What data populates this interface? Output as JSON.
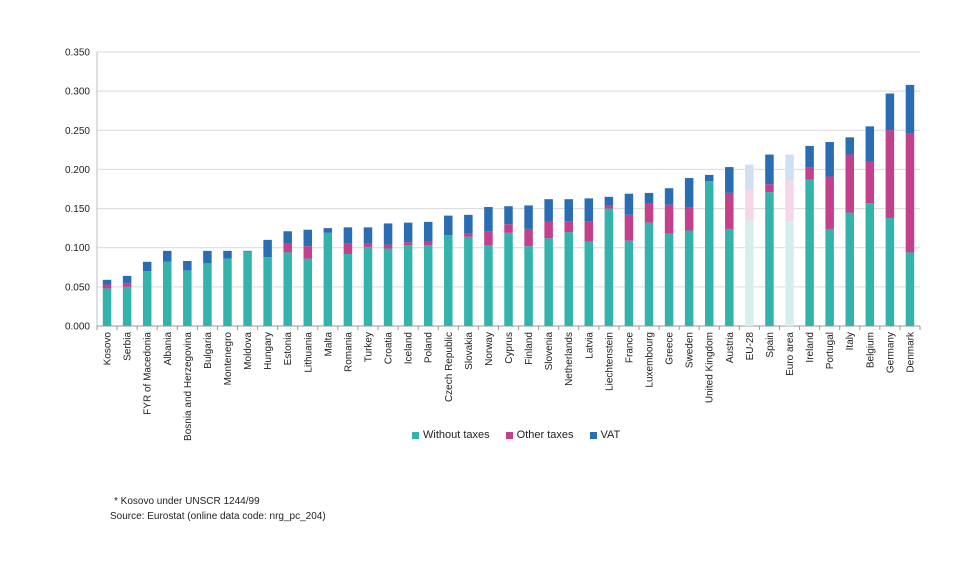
{
  "chart_data": {
    "type": "bar",
    "stacked": true,
    "ylim": [
      0,
      0.35
    ],
    "yticks": [
      "0.000",
      "0.050",
      "0.100",
      "0.150",
      "0.200",
      "0.250",
      "0.300",
      "0.350"
    ],
    "grid": true,
    "categories": [
      "Kosovo",
      "Serbia",
      "FYR of Macedonia",
      "Albania",
      "Bosnia and Herzegovina",
      "Bulgaria",
      "Montenegro",
      "Moldova",
      "Hungary",
      "Estonia",
      "Lithuania",
      "Malta",
      "Romania",
      "Turkey",
      "Croatia",
      "Iceland",
      "Poland",
      "Czech Republic",
      "Slovakia",
      "Norway",
      "Cyprus",
      "Finland",
      "Slovenia",
      "Netherlands",
      "Latvia",
      "Liechtenstein",
      "France",
      "Luxembourg",
      "Greece",
      "Sweden",
      "United Kingdom",
      "Austria",
      "EU-28",
      "Spain",
      "Euro area",
      "Ireland",
      "Portugal",
      "Italy",
      "Belgium",
      "Germany",
      "Denmark"
    ],
    "highlighted": [
      "EU-28",
      "Euro area"
    ],
    "series": [
      {
        "name": "Without taxes",
        "color": "#34b3ac",
        "light_color": "#d4efee",
        "values": [
          0.048,
          0.05,
          0.07,
          0.082,
          0.071,
          0.08,
          0.086,
          0.095,
          0.088,
          0.094,
          0.086,
          0.119,
          0.092,
          0.101,
          0.099,
          0.103,
          0.103,
          0.116,
          0.114,
          0.103,
          0.119,
          0.102,
          0.112,
          0.12,
          0.108,
          0.15,
          0.109,
          0.132,
          0.118,
          0.122,
          0.185,
          0.124,
          0.135,
          0.171,
          0.134,
          0.187,
          0.124,
          0.145,
          0.157,
          0.138,
          0.094
        ]
      },
      {
        "name": "Other taxes",
        "color": "#c2418a",
        "light_color": "#f6d7e7",
        "values": [
          0.005,
          0.004,
          0.0,
          0.0,
          0.0,
          0.0,
          0.0,
          0.0,
          0.0,
          0.012,
          0.016,
          0.0,
          0.013,
          0.005,
          0.005,
          0.004,
          0.005,
          0.0,
          0.004,
          0.018,
          0.011,
          0.022,
          0.021,
          0.014,
          0.026,
          0.004,
          0.033,
          0.024,
          0.037,
          0.029,
          0.0,
          0.046,
          0.04,
          0.01,
          0.052,
          0.016,
          0.067,
          0.074,
          0.053,
          0.112,
          0.152
        ]
      },
      {
        "name": "VAT",
        "color": "#2a6db3",
        "light_color": "#cfe0f3",
        "values": [
          0.006,
          0.01,
          0.012,
          0.014,
          0.012,
          0.016,
          0.01,
          0.001,
          0.022,
          0.015,
          0.021,
          0.006,
          0.021,
          0.02,
          0.027,
          0.025,
          0.025,
          0.025,
          0.024,
          0.031,
          0.023,
          0.03,
          0.029,
          0.028,
          0.029,
          0.011,
          0.027,
          0.014,
          0.021,
          0.038,
          0.008,
          0.033,
          0.031,
          0.038,
          0.033,
          0.027,
          0.044,
          0.022,
          0.045,
          0.047,
          0.062
        ]
      }
    ]
  },
  "notes": {
    "footnote": "* Kosovo under UNSCR 1244/99",
    "source": "Source: Eurostat (online data code: nrg_pc_204)"
  }
}
